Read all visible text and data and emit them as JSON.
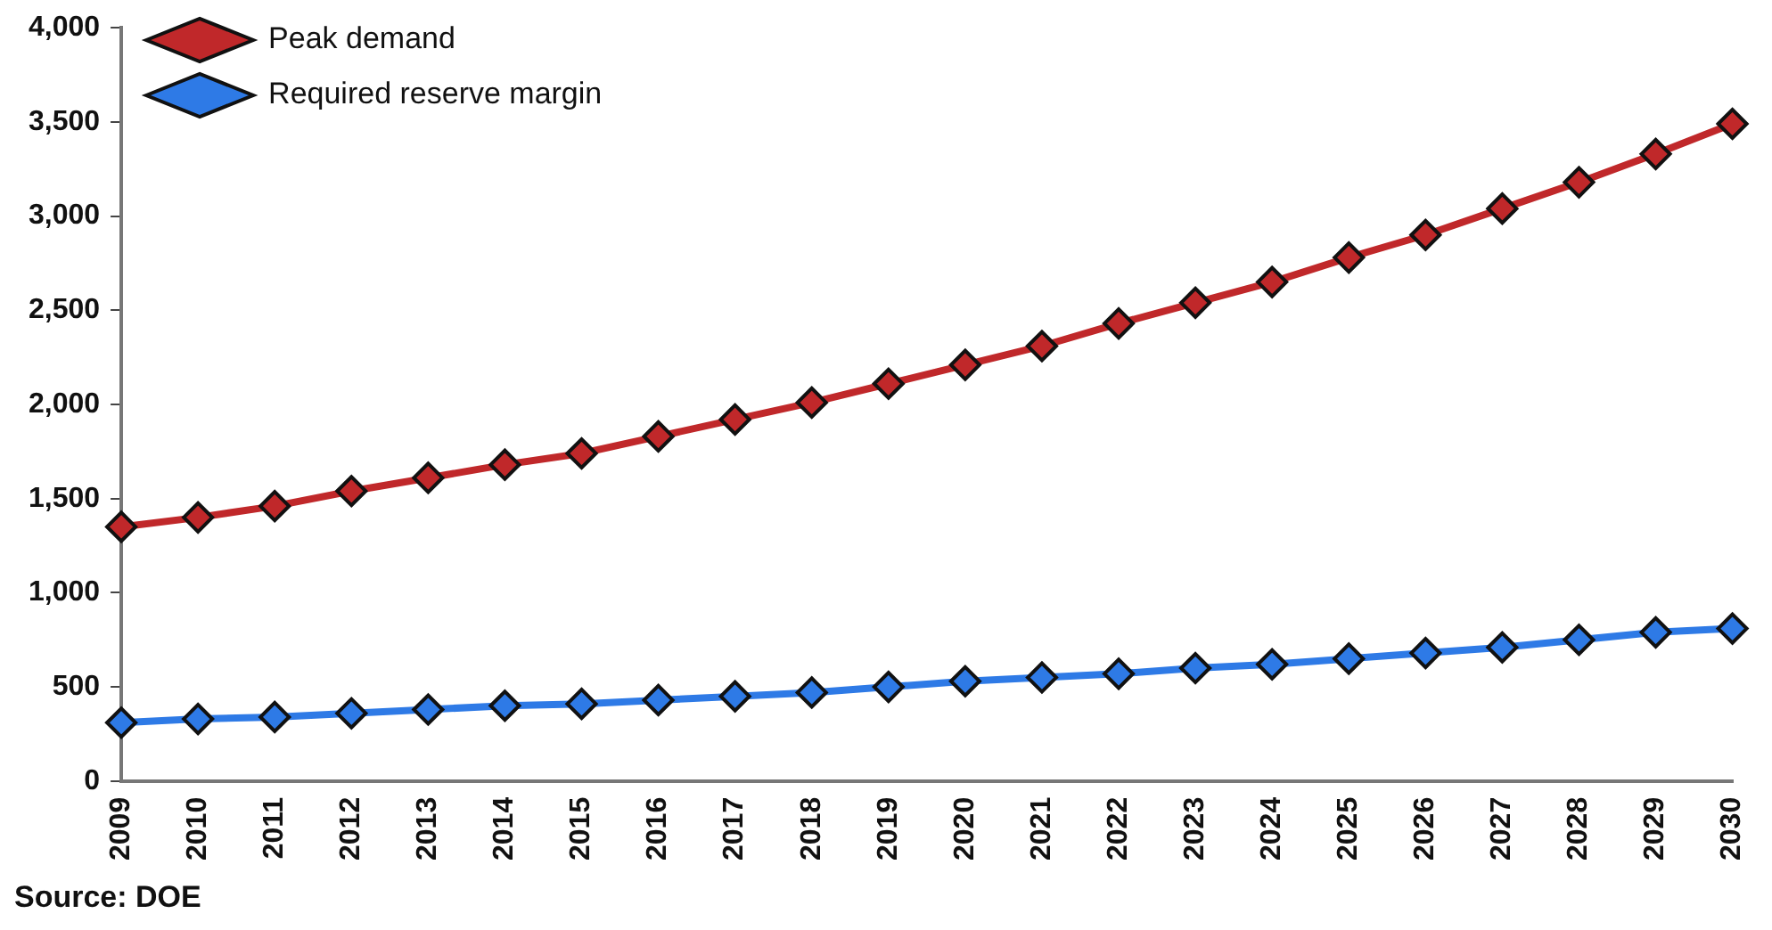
{
  "chart_data": {
    "type": "line",
    "categories": [
      "2009",
      "2010",
      "2011",
      "2012",
      "2013",
      "2014",
      "2015",
      "2016",
      "2017",
      "2018",
      "2019",
      "2020",
      "2021",
      "2022",
      "2023",
      "2024",
      "2025",
      "2026",
      "2027",
      "2028",
      "2029",
      "2030"
    ],
    "series": [
      {
        "name": "Peak demand",
        "color": "#c0282a",
        "values": [
          1350,
          1400,
          1460,
          1540,
          1610,
          1680,
          1740,
          1830,
          1920,
          2010,
          2110,
          2210,
          2310,
          2430,
          2540,
          2650,
          2780,
          2900,
          3040,
          3180,
          3330,
          3490
        ]
      },
      {
        "name": "Required reserve margin",
        "color": "#2e7ae6",
        "values": [
          310,
          330,
          340,
          360,
          380,
          400,
          410,
          430,
          450,
          470,
          500,
          530,
          550,
          570,
          600,
          620,
          650,
          680,
          710,
          750,
          790,
          810
        ]
      }
    ],
    "ylim": [
      0,
      4000
    ],
    "yticks": [
      0,
      {
        "value": 500,
        "label": "500"
      },
      {
        "value": 1000,
        "label": "1,000"
      },
      {
        "value": 1500,
        "label": "1,500"
      },
      {
        "value": 2000,
        "label": "2,000"
      },
      {
        "value": 2500,
        "label": "2,500"
      },
      {
        "value": 3000,
        "label": "3,000"
      },
      {
        "value": 3500,
        "label": "3,500"
      },
      {
        "value": 4000,
        "label": "4,000"
      }
    ],
    "grid": false,
    "legend": "top left",
    "marker": "diamond",
    "line_style": "solid",
    "annotations": [
      "Source: DOE"
    ]
  }
}
